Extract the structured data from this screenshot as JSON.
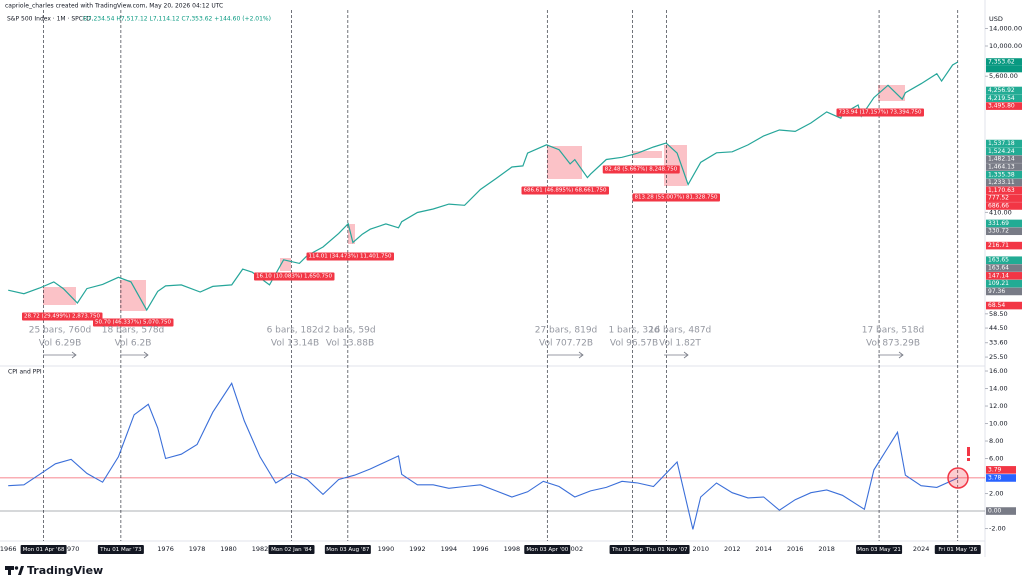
{
  "caption": "capriole_charles created with TradingView.com, May 20, 2026 04:12 UTC",
  "brand": "TradingView",
  "chart_data": [
    {
      "type": "line",
      "title": "S&P 500 Index · 1M · SPCFD",
      "subtitle": "O7,234.54 H7,517.12 L7,114.12 C7,353.62 +144.60 (+2.01%)",
      "currency": "USD",
      "log_scale": true,
      "color": "#26a69a",
      "x": [
        1966,
        1967,
        1968,
        1968.9,
        1969.5,
        1970.4,
        1971,
        1972,
        1973,
        1973.8,
        1974.8,
        1975.5,
        1976,
        1977,
        1978.2,
        1979,
        1980.2,
        1980.9,
        1981.5,
        1982.6,
        1983.5,
        1984.5,
        1985,
        1986,
        1987,
        1987.6,
        1987.9,
        1988.5,
        1989,
        1990,
        1990.8,
        1991,
        1992,
        1993,
        1994,
        1995,
        1996,
        1997,
        1998,
        1998.7,
        1999,
        2000.2,
        2001,
        2001.7,
        2002,
        2002.8,
        2003,
        2004,
        2005,
        2006,
        2007,
        2007.8,
        2008.5,
        2009.2,
        2010,
        2011,
        2012,
        2013,
        2014,
        2015,
        2016,
        2017,
        2018,
        2018.9,
        2019,
        2020,
        2020.2,
        2021,
        2021.9,
        2022.8,
        2023,
        2024,
        2025,
        2025.3,
        2026,
        2026.33
      ],
      "values": [
        92,
        86,
        96,
        108,
        95,
        72,
        95,
        103,
        118,
        108,
        63,
        90,
        100,
        102,
        89,
        99,
        102,
        138,
        130,
        102,
        165,
        154,
        179,
        211,
        274,
        330,
        230,
        270,
        297,
        329,
        305,
        343,
        409,
        438,
        481,
        470,
        636,
        786,
        980,
        1000,
        1279,
        1500,
        1366,
        1040,
        1130,
        800,
        855,
        1131,
        1181,
        1280,
        1438,
        1550,
        1280,
        700,
        1073,
        1286,
        1312,
        1498,
        1782,
        1995,
        1940,
        2279,
        2824,
        2500,
        2704,
        3225,
        2600,
        3714,
        4700,
        3600,
        4077,
        4846,
        5881,
        5100,
        6940,
        7353.62
      ],
      "xlim": [
        1965.48,
        2028.06
      ],
      "ylim": [
        21.9,
        19210
      ],
      "yticks": [
        {
          "value": 14000,
          "label": "14,000.00"
        },
        {
          "value": 10000,
          "label": "10,000.00"
        },
        {
          "value": 5600,
          "label": "5,600.00"
        },
        {
          "value": 410,
          "label": "410.00"
        },
        {
          "value": 58.5,
          "label": "58.50"
        },
        {
          "value": 44.5,
          "label": "44.50"
        },
        {
          "value": 33.6,
          "label": "33.60"
        },
        {
          "value": 25.5,
          "label": "25.50"
        }
      ],
      "countdown": "5d 18h",
      "price_labels": [
        {
          "value": 7353.62,
          "label": "7,353.62",
          "color": "#089981"
        },
        {
          "value": 4256.92,
          "label": "4,256.92",
          "color": "#22ab94"
        },
        {
          "value": 4219.54,
          "label": "4,219.54",
          "color": "#22ab94"
        },
        {
          "value": 3495.8,
          "label": "3,495.80",
          "color": "#f23645"
        },
        {
          "value": 1537.18,
          "label": "1,537.18",
          "color": "#22ab94"
        },
        {
          "value": 1524.24,
          "label": "1,524.24",
          "color": "#22ab94"
        },
        {
          "value": 1482.14,
          "label": "1,482.14",
          "color": "#787b86"
        },
        {
          "value": 1464.13,
          "label": "1,464.13",
          "color": "#787b86"
        },
        {
          "value": 1335.38,
          "label": "1,335.38",
          "color": "#22ab94"
        },
        {
          "value": 1233.11,
          "label": "1,233.11",
          "color": "#787b86"
        },
        {
          "value": 1170.63,
          "label": "1,170.63",
          "color": "#f23645"
        },
        {
          "value": 777.52,
          "label": "777.52",
          "color": "#f23645"
        },
        {
          "value": 686.66,
          "label": "686.66",
          "color": "#f23645"
        },
        {
          "value": 331.69,
          "label": "331.69",
          "color": "#22ab94"
        },
        {
          "value": 330.72,
          "label": "330.72",
          "color": "#787b86"
        },
        {
          "value": 216.71,
          "label": "216.71",
          "color": "#f23645"
        },
        {
          "value": 163.65,
          "label": "163.65",
          "color": "#22ab94"
        },
        {
          "value": 163.64,
          "label": "163.64",
          "color": "#787b86"
        },
        {
          "value": 147.14,
          "label": "147.14",
          "color": "#f23645"
        },
        {
          "value": 109.21,
          "label": "109.21",
          "color": "#22ab94"
        },
        {
          "value": 97.36,
          "label": "97.36",
          "color": "#787b86"
        },
        {
          "value": 68.54,
          "label": "68.54",
          "color": "#f23645"
        }
      ],
      "measures": [
        {
          "change": "28.72 (29.499%) 2,873.750",
          "bars": "25 bars, 760d",
          "vol": "Vol 6.29B"
        },
        {
          "change": "50.70 (46.337%) 5,070.750",
          "bars": "18 bars, 578d",
          "vol": "Vol 6.2B"
        },
        {
          "change": "16.10 (10.083%) 1,650.750",
          "bars": "6 bars, 182d",
          "vol": "Vol 13.14B"
        },
        {
          "change": "114.01 (34.473%) 11,401.750",
          "bars": "2 bars, 59d",
          "vol": "Vol 13.88B"
        },
        {
          "change": "686.61 (46.895%) 68,661.750",
          "bars": "27 bars, 819d",
          "vol": "Vol 707.72B"
        },
        {
          "change": "82.48 (5.667%) 8,248.750",
          "bars": "1 bars, 32d",
          "vol": "Vol 96.57B"
        },
        {
          "change": "813.28 (55.007%) 81,328.750",
          "bars": "16 bars, 487d",
          "vol": "Vol 1.82T"
        },
        {
          "change": "733.94 (17.157%) 73,394.750",
          "bars": "17 bars, 518d",
          "vol": "Vol 873.29B"
        }
      ]
    },
    {
      "type": "line",
      "title": "CPI and PPI",
      "color": "#3b6fd9",
      "x": [
        1966,
        1967,
        1968,
        1969,
        1970,
        1971,
        1972,
        1973,
        1974,
        1974.9,
        1975.5,
        1976,
        1977,
        1978,
        1979,
        1980.2,
        1981,
        1982,
        1983,
        1984,
        1985,
        1986,
        1987,
        1988,
        1989,
        1990.8,
        1991,
        1992,
        1993,
        1994,
        1995,
        1996,
        1997,
        1998,
        1999,
        2000,
        2001,
        2002,
        2003,
        2004,
        2005,
        2006,
        2007,
        2008.5,
        2009.5,
        2010,
        2011,
        2012,
        2013,
        2014,
        2015,
        2016,
        2017,
        2018,
        2019,
        2020.4,
        2021,
        2022.5,
        2023,
        2024,
        2025,
        2026.33
      ],
      "values": [
        2.9,
        3.0,
        4.2,
        5.4,
        5.9,
        4.3,
        3.3,
        6.2,
        11.0,
        12.2,
        9.5,
        6.0,
        6.5,
        7.6,
        11.3,
        14.6,
        10.3,
        6.2,
        3.2,
        4.3,
        3.6,
        1.9,
        3.6,
        4.1,
        4.8,
        6.3,
        4.2,
        3.0,
        3.0,
        2.6,
        2.8,
        3.0,
        2.3,
        1.6,
        2.2,
        3.4,
        2.8,
        1.6,
        2.3,
        2.7,
        3.4,
        3.2,
        2.8,
        5.6,
        -2.1,
        1.6,
        3.2,
        2.1,
        1.5,
        1.6,
        0.1,
        1.3,
        2.1,
        2.4,
        1.8,
        0.2,
        4.7,
        9.0,
        4.1,
        2.9,
        2.7,
        3.78
      ],
      "xlim": [
        1965.48,
        2028.06
      ],
      "ylim": [
        -3.31,
        16.46
      ],
      "yticks": [
        {
          "value": 16,
          "label": "16.00"
        },
        {
          "value": 14,
          "label": "14.00"
        },
        {
          "value": 12,
          "label": "12.00"
        },
        {
          "value": 10,
          "label": "10.00"
        },
        {
          "value": 8,
          "label": "8.00"
        },
        {
          "value": 6,
          "label": "6.00"
        },
        {
          "value": 2,
          "label": "2.00"
        },
        {
          "value": -2,
          "label": "-2.00"
        }
      ],
      "levels": [
        {
          "value": 3.79,
          "label": "3.79",
          "color": "#f23645",
          "line": true
        },
        {
          "value": 3.78,
          "label": "3.78",
          "color": "#2962ff",
          "line": false
        },
        {
          "value": 0,
          "label": "0.00",
          "color": "#787b86",
          "line": true
        }
      ],
      "xticks": [
        1966,
        1970,
        1976,
        1978,
        1980,
        1982,
        1990,
        1992,
        1994,
        1996,
        1998,
        2002,
        2010,
        2012,
        2014,
        2016,
        2018,
        2024
      ],
      "markers": [
        {
          "x": 1968.25,
          "label": "Mon 01 Apr '68"
        },
        {
          "x": 1973.16,
          "label": "Thu 01 Mar '73"
        },
        {
          "x": 1984.0,
          "label": "Mon 02 Jan '84"
        },
        {
          "x": 1987.58,
          "label": "Mon 03 Aug '87"
        },
        {
          "x": 2000.25,
          "label": "Mon 03 Apr '00"
        },
        {
          "x": 2005.67,
          "label": "Thu 01 Sep '05"
        },
        {
          "x": 2007.83,
          "label": "Thu 01 Nov '07"
        },
        {
          "x": 2021.33,
          "label": "Mon 03 May '21"
        },
        {
          "x": 2026.33,
          "label": "Fri 01 May '26"
        }
      ]
    }
  ]
}
